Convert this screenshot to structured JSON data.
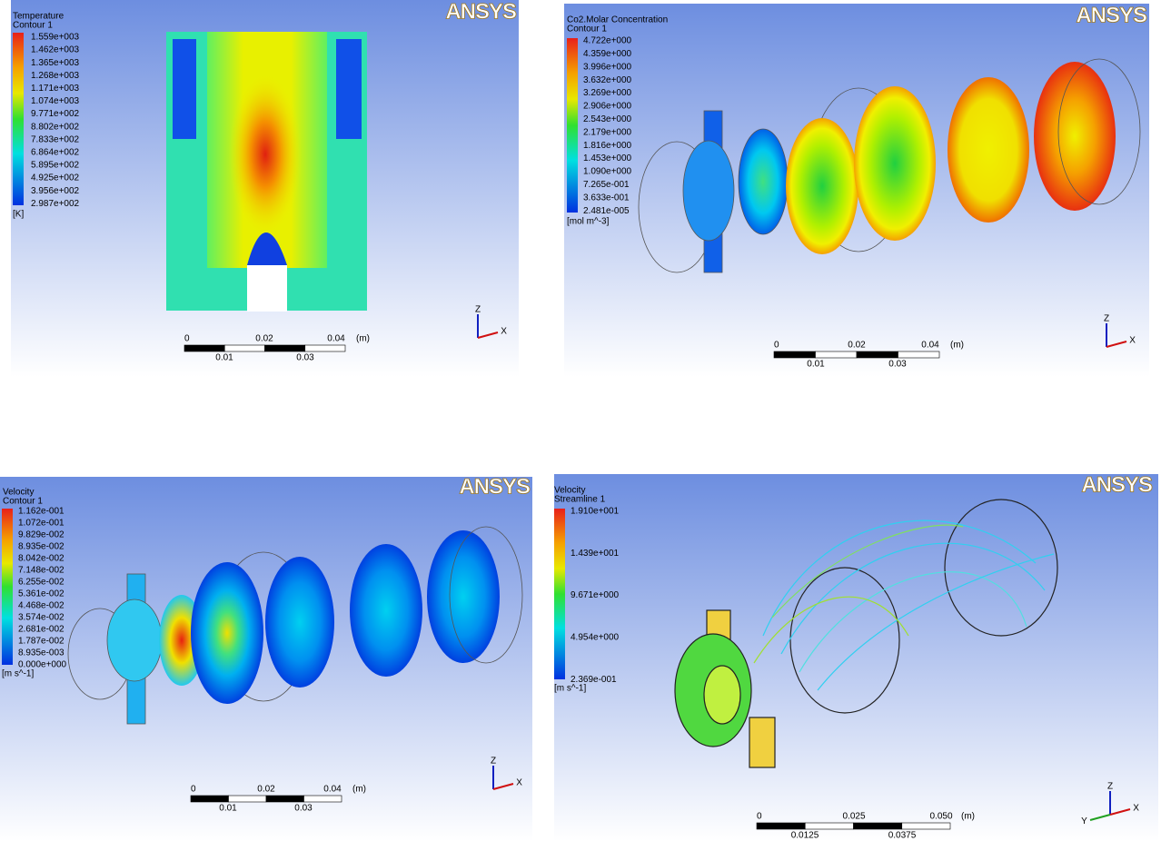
{
  "panels": [
    {
      "logo": "ANSYS",
      "title": "Temperature",
      "subtitle": "Contour 1",
      "legend_labels": [
        "1.559e+003",
        "1.462e+003",
        "1.365e+003",
        "1.268e+003",
        "1.171e+003",
        "1.074e+003",
        "9.771e+002",
        "8.802e+002",
        "7.833e+002",
        "6.864e+002",
        "5.895e+002",
        "4.925e+002",
        "3.956e+002",
        "2.987e+002"
      ],
      "unit": "[K]",
      "scale_labels_top": [
        "0",
        "0.02",
        "0.04"
      ],
      "scale_labels_bottom": [
        "0.01",
        "0.03"
      ],
      "scale_unit": "(m)",
      "axis_labels": [
        "Z",
        "X"
      ]
    },
    {
      "logo": "ANSYS",
      "title": "Co2.Molar Concentration",
      "subtitle": "Contour 1",
      "legend_labels": [
        "4.722e+000",
        "4.359e+000",
        "3.996e+000",
        "3.632e+000",
        "3.269e+000",
        "2.906e+000",
        "2.543e+000",
        "2.179e+000",
        "1.816e+000",
        "1.453e+000",
        "1.090e+000",
        "7.265e-001",
        "3.633e-001",
        "2.481e-005"
      ],
      "unit": "[mol m^-3]",
      "scale_labels_top": [
        "0",
        "0.02",
        "0.04"
      ],
      "scale_labels_bottom": [
        "0.01",
        "0.03"
      ],
      "scale_unit": "(m)",
      "axis_labels": [
        "Z",
        "X"
      ]
    },
    {
      "logo": "ANSYS",
      "title": "Velocity",
      "subtitle": "Contour 1",
      "legend_labels": [
        "1.162e-001",
        "1.072e-001",
        "9.829e-002",
        "8.935e-002",
        "8.042e-002",
        "7.148e-002",
        "6.255e-002",
        "5.361e-002",
        "4.468e-002",
        "3.574e-002",
        "2.681e-002",
        "1.787e-002",
        "8.935e-003",
        "0.000e+000"
      ],
      "unit": "[m s^-1]",
      "scale_labels_top": [
        "0",
        "0.02",
        "0.04"
      ],
      "scale_labels_bottom": [
        "0.01",
        "0.03"
      ],
      "scale_unit": "(m)",
      "axis_labels": [
        "Z",
        "X"
      ]
    },
    {
      "logo": "ANSYS",
      "title": "Velocity",
      "subtitle": "Streamline 1",
      "legend_labels": [
        "1.910e+001",
        "1.439e+001",
        "9.671e+000",
        "4.954e+000",
        "2.369e-001"
      ],
      "unit": "[m s^-1]",
      "scale_labels_top": [
        "0",
        "0.025",
        "0.050"
      ],
      "scale_labels_bottom": [
        "0.0125",
        "0.0375"
      ],
      "scale_unit": "(m)",
      "axis_labels": [
        "Z",
        "Y",
        "X"
      ]
    }
  ]
}
